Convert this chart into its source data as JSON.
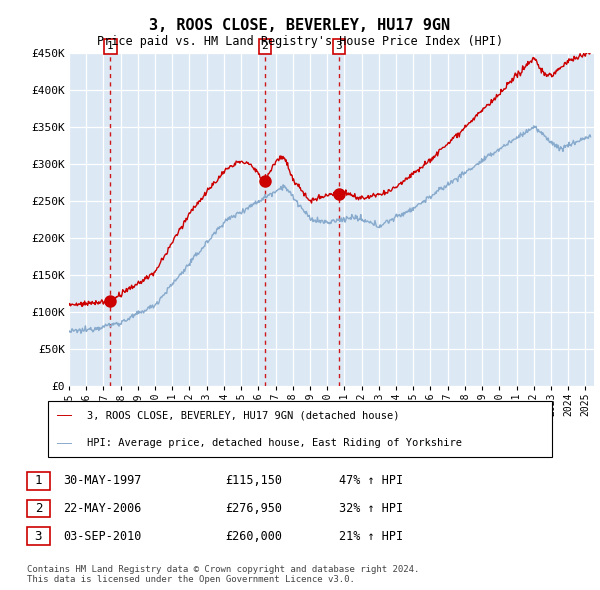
{
  "title": "3, ROOS CLOSE, BEVERLEY, HU17 9GN",
  "subtitle": "Price paid vs. HM Land Registry's House Price Index (HPI)",
  "ylabel_ticks": [
    "£0",
    "£50K",
    "£100K",
    "£150K",
    "£200K",
    "£250K",
    "£300K",
    "£350K",
    "£400K",
    "£450K"
  ],
  "ylim": [
    0,
    450000
  ],
  "xlim_start": 1995.0,
  "xlim_end": 2025.5,
  "background_color": "#dce9f5",
  "red_line_color": "#cc0000",
  "blue_line_color": "#88aacc",
  "dashed_line_color": "#cc0000",
  "sale_dates": [
    1997.41,
    2006.38,
    2010.67
  ],
  "sale_prices": [
    115150,
    276950,
    260000
  ],
  "sale_labels": [
    "1",
    "2",
    "3"
  ],
  "legend_label_red": "3, ROOS CLOSE, BEVERLEY, HU17 9GN (detached house)",
  "legend_label_blue": "HPI: Average price, detached house, East Riding of Yorkshire",
  "table_data": [
    [
      "1",
      "30-MAY-1997",
      "£115,150",
      "47% ↑ HPI"
    ],
    [
      "2",
      "22-MAY-2006",
      "£276,950",
      "32% ↑ HPI"
    ],
    [
      "3",
      "03-SEP-2010",
      "£260,000",
      "21% ↑ HPI"
    ]
  ],
  "footnote": "Contains HM Land Registry data © Crown copyright and database right 2024.\nThis data is licensed under the Open Government Licence v3.0."
}
